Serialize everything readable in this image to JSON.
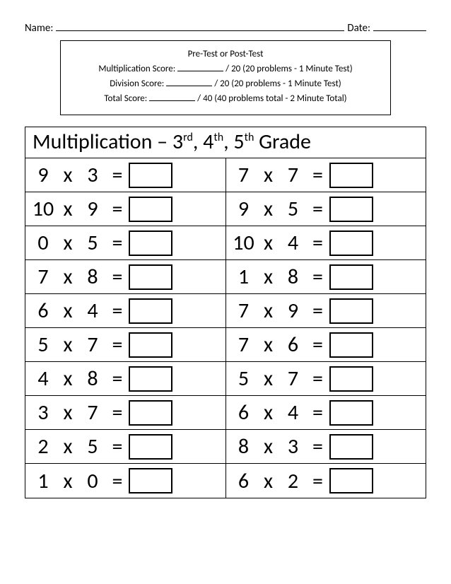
{
  "header": {
    "name_label": "Name:",
    "date_label": "Date:"
  },
  "info_box": {
    "test_type_line": "Pre-Test        or       Post-Test",
    "mult_label": "Multiplication Score:",
    "mult_suffix": "/ 20     (20 problems - 1 Minute Test)",
    "div_label": "Division Score:",
    "div_suffix": "/ 20     (20 problems - 1 Minute Test)",
    "total_label": "Total Score:",
    "total_suffix": "/ 40     (40 problems total - 2 Minute Total)"
  },
  "worksheet": {
    "title_part1": "Multiplication – 3",
    "sup1": "rd",
    "title_part2": ", 4",
    "sup2": "th",
    "title_part3": ", 5",
    "sup3": "th",
    "title_part4": " Grade",
    "operator": "x",
    "equals": "=",
    "problems_left": [
      {
        "a": "9",
        "b": "3"
      },
      {
        "a": "10",
        "b": "9"
      },
      {
        "a": "0",
        "b": "5"
      },
      {
        "a": "7",
        "b": "8"
      },
      {
        "a": "6",
        "b": "4"
      },
      {
        "a": "5",
        "b": "7"
      },
      {
        "a": "4",
        "b": "8"
      },
      {
        "a": "3",
        "b": "7"
      },
      {
        "a": "2",
        "b": "5"
      },
      {
        "a": "1",
        "b": "0"
      }
    ],
    "problems_right": [
      {
        "a": "7",
        "b": "7"
      },
      {
        "a": "9",
        "b": "5"
      },
      {
        "a": "10",
        "b": "4"
      },
      {
        "a": "1",
        "b": "8"
      },
      {
        "a": "7",
        "b": "9"
      },
      {
        "a": "7",
        "b": "6"
      },
      {
        "a": "5",
        "b": "7"
      },
      {
        "a": "6",
        "b": "4"
      },
      {
        "a": "8",
        "b": "3"
      },
      {
        "a": "6",
        "b": "2"
      }
    ]
  },
  "styles": {
    "border_color": "#000000",
    "background_color": "#ffffff",
    "text_color": "#000000",
    "title_fontsize": 30,
    "problem_fontsize": 30,
    "info_fontsize": 13,
    "header_fontsize": 15
  }
}
